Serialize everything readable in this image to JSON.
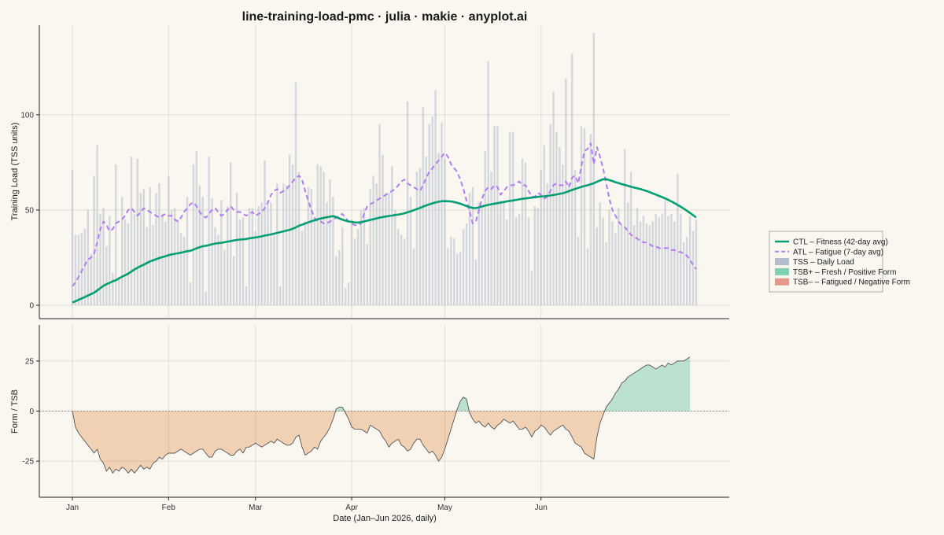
{
  "chart_data": {
    "type": "line",
    "title": "line-training-load-pmc · julia · makie · anyplot.ai",
    "xlabel": "Date (Jan–Jun 2026, daily)",
    "x_tick_labels": [
      "Jan",
      "Feb",
      "Mar",
      "Apr",
      "May",
      "Jun"
    ],
    "x_tick_days": [
      0,
      31,
      59,
      90,
      120,
      151
    ],
    "top_panel": {
      "ylabel": "Training Load (TSS units)",
      "ylim": [
        -7,
        147
      ],
      "yticks": [
        0,
        50,
        100
      ],
      "tss_daily": [
        71,
        37,
        37,
        38,
        40,
        50,
        27,
        68,
        84,
        48,
        51,
        31,
        47,
        17,
        74,
        15,
        57,
        45,
        43,
        78,
        48,
        77,
        59,
        61,
        41,
        62,
        42,
        59,
        64,
        48,
        44,
        68,
        50,
        51,
        45,
        38,
        36,
        57,
        12,
        74,
        81,
        63,
        57,
        7,
        78,
        56,
        41,
        37,
        55,
        29,
        52,
        75,
        26,
        59,
        45,
        46,
        10,
        51,
        51,
        39,
        52,
        54,
        76,
        55,
        54,
        38,
        64,
        10,
        64,
        63,
        79,
        74,
        117,
        70,
        39,
        44,
        62,
        61,
        45,
        74,
        73,
        70,
        54,
        66,
        57,
        26,
        29,
        41,
        9,
        12,
        45,
        35,
        40,
        50,
        51,
        32,
        61,
        68,
        64,
        95,
        79,
        59,
        59,
        73,
        50,
        40,
        37,
        35,
        107,
        57,
        30,
        70,
        72,
        104,
        78,
        95,
        99,
        113,
        80,
        96,
        77,
        30,
        36,
        35,
        27,
        28,
        40,
        43,
        59,
        62,
        24,
        54,
        52,
        81,
        128,
        70,
        94,
        94,
        55,
        55,
        45,
        91,
        91,
        46,
        48,
        77,
        75,
        46,
        18,
        52,
        51,
        71,
        84,
        64,
        95,
        112,
        91,
        83,
        74,
        119,
        64,
        132,
        71,
        36,
        94,
        93,
        30,
        90,
        143,
        41,
        54,
        46,
        33,
        50,
        44,
        38,
        51,
        42,
        82,
        54,
        70,
        42,
        51,
        44,
        47,
        43,
        42,
        44,
        48,
        46,
        48,
        55,
        47,
        48,
        44,
        69,
        48,
        33,
        36,
        47,
        39,
        45
      ],
      "ctl": [
        1.5,
        2.1,
        2.9,
        3.6,
        4.3,
        5.1,
        5.9,
        6.6,
        7.8,
        9.0,
        10.2,
        11.1,
        11.8,
        12.6,
        13.1,
        14.1,
        15.0,
        15.8,
        16.6,
        17.7,
        18.8,
        19.7,
        20.6,
        21.3,
        22.2,
        23.0,
        23.6,
        24.2,
        24.8,
        25.3,
        25.8,
        26.3,
        26.7,
        27.0,
        27.3,
        27.6,
        28.0,
        28.4,
        28.6,
        29.2,
        29.9,
        30.5,
        31.0,
        31.2,
        31.6,
        32.0,
        32.4,
        32.6,
        32.8,
        33.1,
        33.4,
        33.7,
        34.0,
        34.3,
        34.5,
        34.6,
        34.8,
        35.1,
        35.4,
        35.6,
        35.9,
        36.2,
        36.6,
        36.9,
        37.2,
        37.6,
        38.0,
        38.4,
        38.8,
        39.2,
        39.6,
        40.2,
        40.9,
        41.7,
        42.3,
        42.9,
        43.5,
        44.1,
        44.6,
        45.1,
        45.5,
        45.9,
        46.2,
        46.5,
        46.8,
        46.3,
        45.6,
        45.0,
        44.4,
        44.0,
        43.8,
        43.5,
        43.4,
        43.6,
        44.0,
        44.4,
        44.8,
        45.2,
        45.6,
        46.0,
        46.3,
        46.6,
        46.9,
        47.1,
        47.4,
        47.6,
        47.9,
        48.3,
        48.8,
        49.3,
        49.9,
        50.5,
        51.1,
        51.8,
        52.4,
        53.0,
        53.5,
        54.0,
        54.3,
        54.6,
        54.7,
        54.6,
        54.5,
        54.2,
        53.8,
        53.3,
        52.7,
        52.1,
        51.5,
        51.1,
        51.0,
        51.4,
        51.9,
        52.3,
        52.7,
        53.0,
        53.3,
        53.6,
        53.9,
        54.2,
        54.5,
        54.8,
        55.0,
        55.3,
        55.6,
        55.9,
        56.1,
        56.3,
        56.5,
        56.7,
        56.9,
        57.1,
        57.2,
        57.4,
        57.6,
        57.9,
        58.2,
        58.5,
        58.8,
        59.3,
        59.9,
        60.5,
        61.1,
        61.6,
        62.1,
        62.6,
        63.0,
        63.5,
        64.0,
        64.8,
        65.5,
        66.1,
        66.2,
        65.7,
        65.2,
        64.6,
        64.1,
        63.6,
        63.2,
        62.7,
        62.2,
        61.8,
        61.4,
        61.0,
        60.5,
        60.0,
        59.4,
        58.7,
        58.1,
        57.4,
        56.8,
        56.1,
        55.3,
        54.5,
        53.6,
        52.7,
        51.7,
        50.7,
        49.6,
        48.5,
        47.3,
        46.1
      ],
      "atl": [
        10,
        12,
        15,
        18,
        21,
        24,
        25,
        27,
        33,
        40,
        44,
        42,
        39,
        40,
        43,
        44,
        45,
        47,
        50,
        51,
        49,
        47,
        49,
        51,
        50,
        49,
        48,
        47,
        46,
        47,
        48,
        47,
        47,
        45,
        44,
        46,
        49,
        51,
        53,
        54,
        52,
        49,
        47,
        46,
        48,
        50,
        51,
        49,
        47,
        48,
        50,
        52,
        50,
        49,
        49,
        48,
        47,
        48,
        49,
        47,
        48,
        49,
        51,
        54,
        58,
        60,
        61,
        59,
        60,
        61,
        63,
        65,
        67,
        68,
        66,
        60,
        55,
        50,
        46,
        44,
        44,
        43,
        43,
        44,
        45,
        46,
        47,
        48,
        46,
        44,
        43,
        42,
        42,
        43,
        48,
        52,
        53,
        54,
        55,
        56,
        57,
        58,
        59,
        60,
        61,
        63,
        65,
        66,
        64,
        63,
        62,
        61,
        60,
        63,
        67,
        70,
        72,
        74,
        76,
        78,
        80,
        78,
        74,
        72,
        70,
        66,
        61,
        55,
        49,
        43,
        44,
        50,
        56,
        60,
        62,
        61,
        63,
        62,
        58,
        60,
        62,
        63,
        63,
        64,
        65,
        63,
        63,
        60,
        57,
        57,
        59,
        58,
        56,
        57,
        60,
        63,
        64,
        63,
        63,
        65,
        62,
        67,
        68,
        64,
        73,
        81,
        82,
        85,
        74,
        83,
        78,
        72,
        64,
        56,
        50,
        47,
        44,
        42,
        41,
        39,
        37,
        36,
        35,
        34,
        33,
        33,
        32,
        31,
        31,
        30,
        30,
        30,
        30,
        29,
        29,
        28,
        28,
        27,
        26,
        24,
        21,
        19
      ],
      "tss_color": "#B4BDCB",
      "ctl_color": "#009E73",
      "atl_color": "#B27DF0"
    },
    "bottom_panel": {
      "ylabel": "Form / TSB",
      "ylim": [
        -43,
        43
      ],
      "yticks": [
        -25,
        0,
        25
      ],
      "tsb": [
        0,
        -8,
        -11,
        -13,
        -15,
        -17,
        -19,
        -21,
        -19,
        -24,
        -26,
        -30,
        -28,
        -31,
        -29,
        -30,
        -28,
        -29,
        -31,
        -29,
        -31,
        -29,
        -27,
        -29,
        -28,
        -29,
        -26,
        -25,
        -23,
        -24,
        -22,
        -21,
        -21,
        -21,
        -20,
        -19,
        -20,
        -21,
        -22,
        -21,
        -20,
        -19,
        -19,
        -21,
        -23,
        -23,
        -20,
        -19,
        -19,
        -20,
        -21,
        -22,
        -22,
        -20,
        -19,
        -21,
        -18,
        -18,
        -17,
        -16,
        -17,
        -18,
        -17,
        -16,
        -15,
        -16,
        -14,
        -15,
        -16,
        -17,
        -17,
        -16,
        -13,
        -12,
        -18,
        -22,
        -21,
        -20,
        -18,
        -19,
        -15,
        -13,
        -11,
        -8,
        -4,
        1,
        2,
        2,
        -1,
        -4,
        -8,
        -9,
        -9,
        -9,
        -10,
        -11,
        -7,
        -8,
        -9,
        -10,
        -13,
        -15,
        -18,
        -16,
        -15,
        -14,
        -17,
        -18,
        -20,
        -19,
        -16,
        -14,
        -14,
        -17,
        -19,
        -21,
        -20,
        -22,
        -25,
        -23,
        -19,
        -14,
        -9,
        -4,
        1,
        5,
        7,
        6,
        -1,
        -4,
        -6,
        -5,
        -7,
        -8,
        -6,
        -8,
        -9,
        -7,
        -6,
        -4,
        -5,
        -6,
        -5,
        -7,
        -9,
        -9,
        -8,
        -10,
        -13,
        -10,
        -9,
        -7,
        -8,
        -10,
        -12,
        -10,
        -9,
        -8,
        -7,
        -9,
        -10,
        -13,
        -16,
        -17,
        -18,
        -21,
        -22,
        -23,
        -24,
        -13,
        -6,
        -2,
        2,
        4,
        6,
        9,
        11,
        14,
        15,
        17,
        18,
        19,
        20,
        21,
        22,
        23,
        23,
        22,
        21,
        22,
        23,
        22,
        24,
        23,
        24,
        25,
        25,
        25,
        26,
        27
      ],
      "pos_color": "#009E73",
      "neg_color": "#D55E00"
    },
    "legend": {
      "placement": "right",
      "entries": [
        {
          "label": "CTL – Fitness (42-day avg)",
          "kind": "line",
          "color": "#009E73"
        },
        {
          "label": "ATL – Fatigue (7-day avg)",
          "kind": "dashed",
          "color": "#B27DF0"
        },
        {
          "label": "TSS – Daily Load",
          "kind": "patch",
          "color": "#B4BDCB"
        },
        {
          "label": "TSB+ – Fresh / Positive Form",
          "kind": "patch",
          "color": "#7FCFB3"
        },
        {
          "label": "TSB– – Fatigued / Negative Form",
          "kind": "patch",
          "color": "#E29A8E"
        }
      ]
    },
    "grid": true
  }
}
